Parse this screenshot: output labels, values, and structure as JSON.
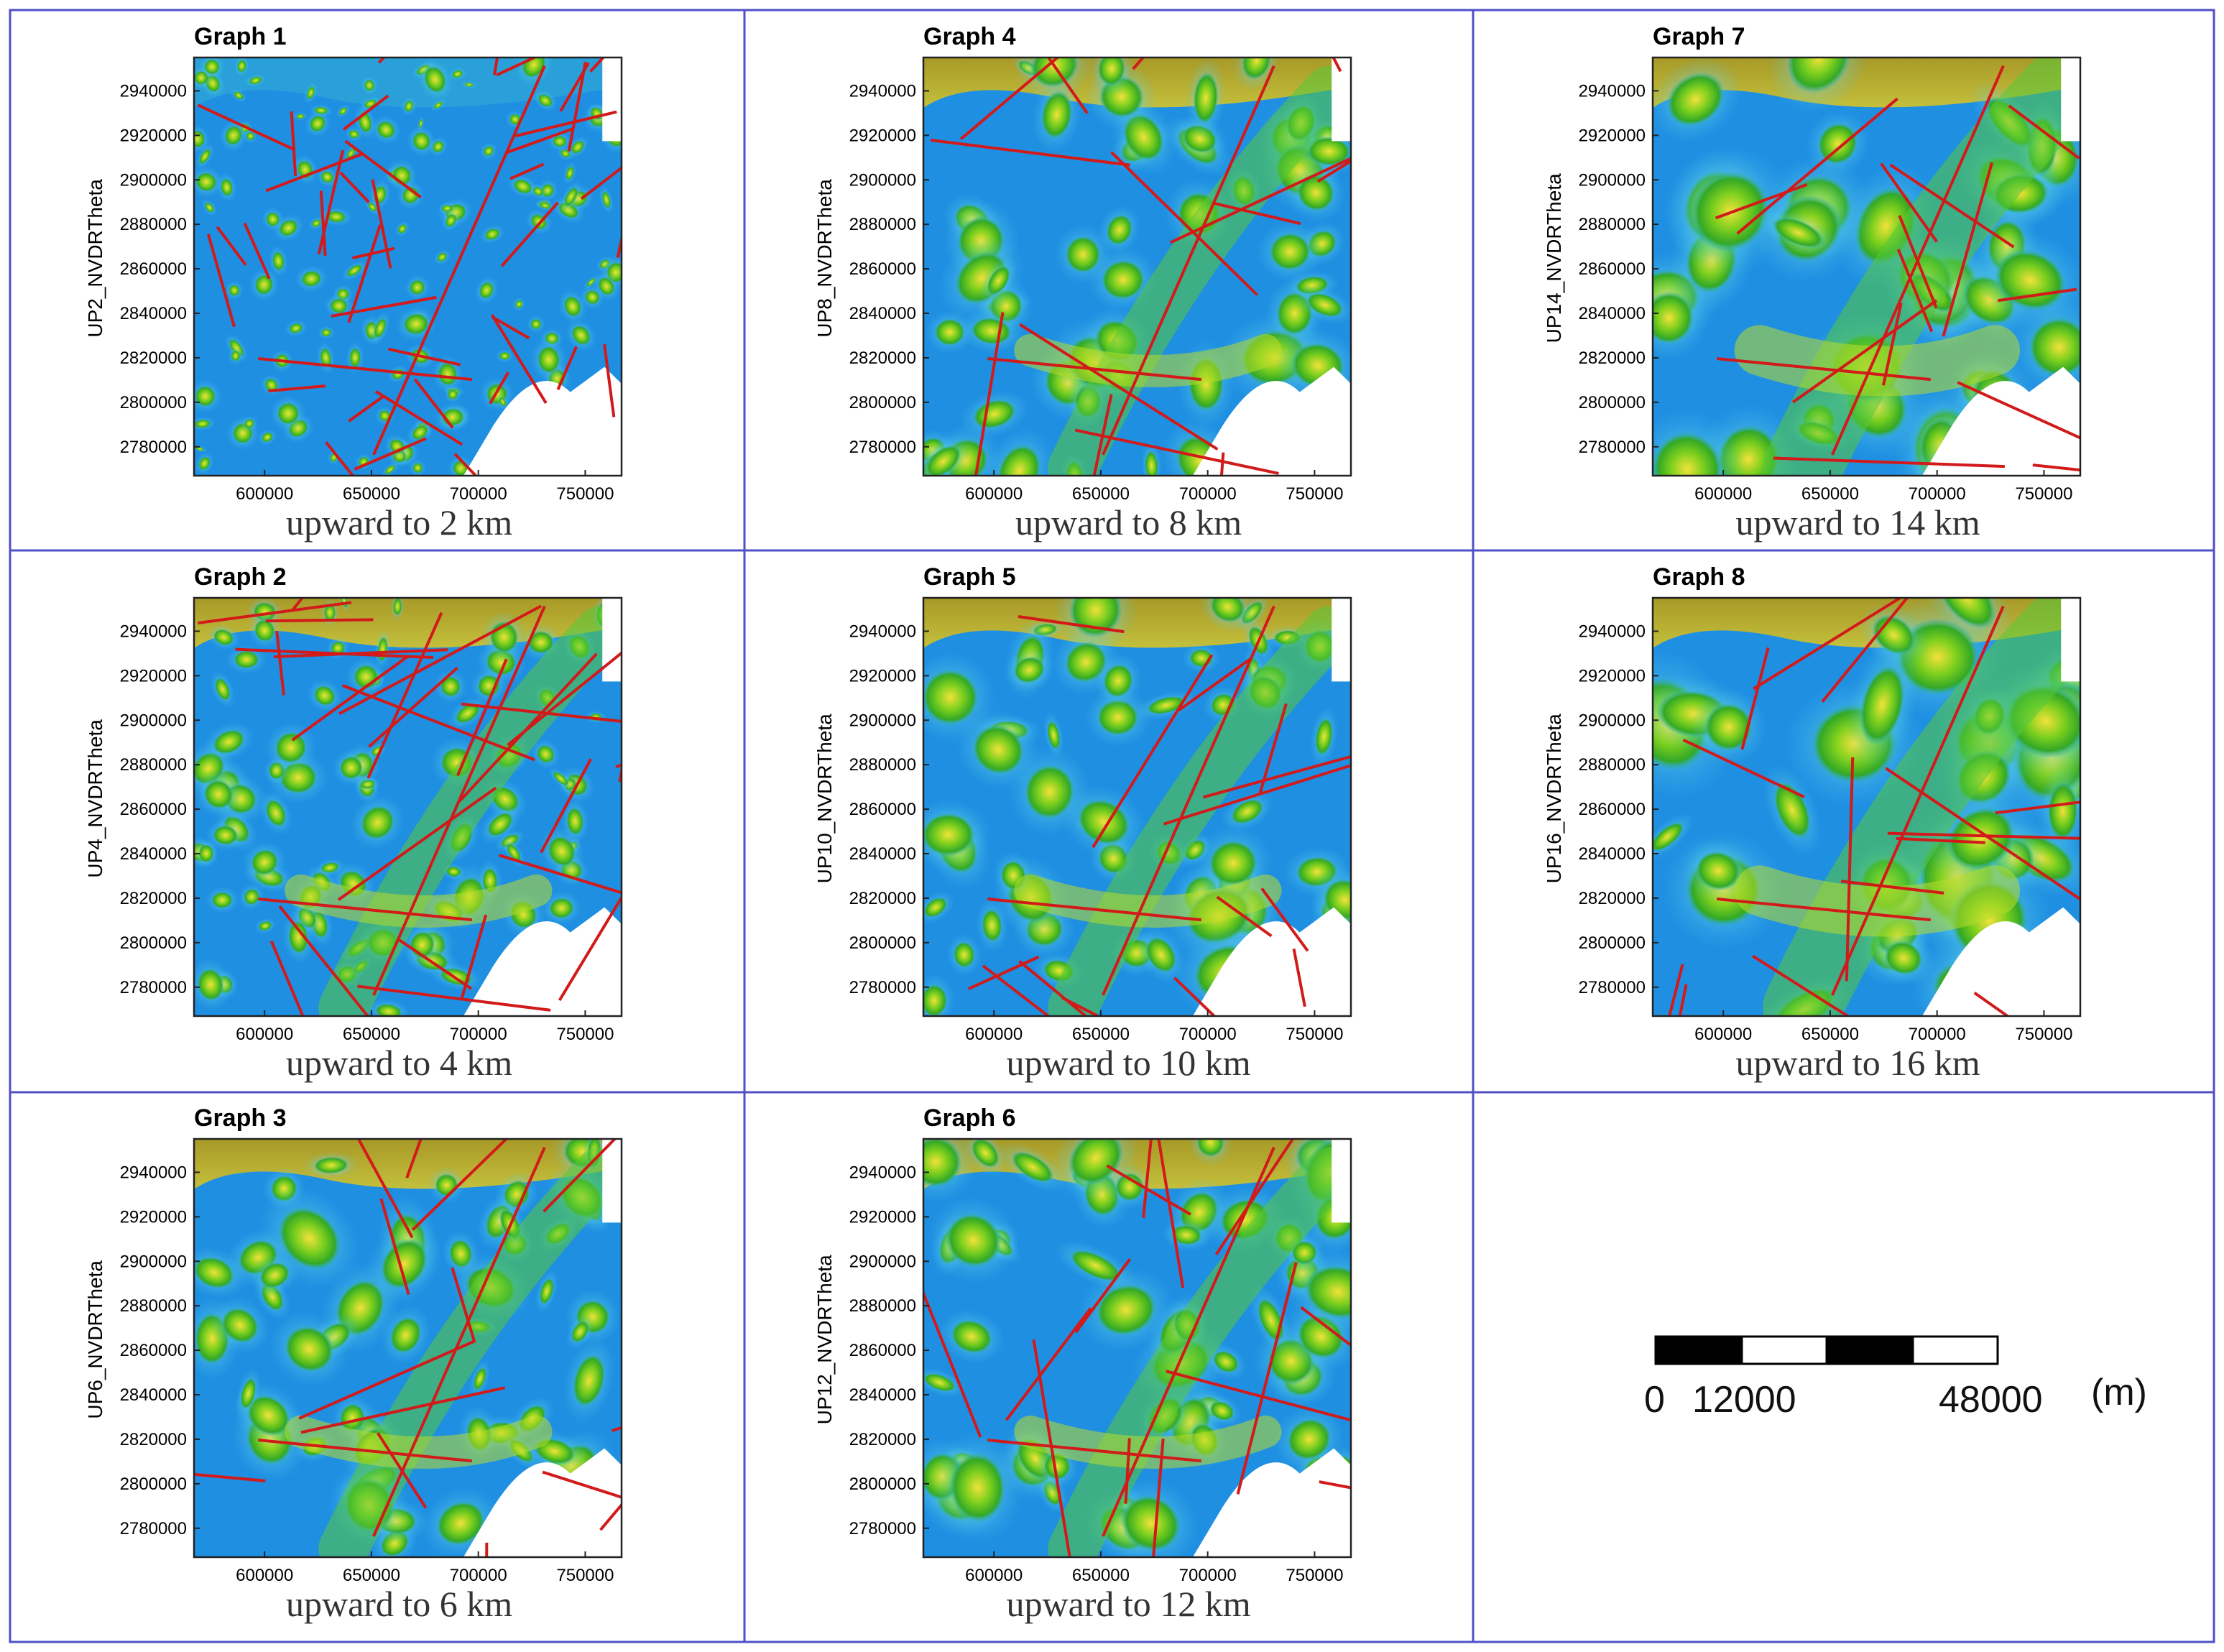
{
  "panels": [
    {
      "title": "Graph 1",
      "ylabel": "UP2_NVDRTheta",
      "caption": "upward to 2 km",
      "detail": "fine"
    },
    {
      "title": "Graph 4",
      "ylabel": "UP8_NVDRTheta",
      "caption": "upward to 8 km",
      "detail": "medium"
    },
    {
      "title": "Graph 7",
      "ylabel": "UP14_NVDRTheta",
      "caption": "upward to 14 km",
      "detail": "coarse"
    },
    {
      "title": "Graph 2",
      "ylabel": "UP4_NVDRTheta",
      "caption": "upward to 4 km",
      "detail": "fine2"
    },
    {
      "title": "Graph 5",
      "ylabel": "UP10_NVDRTheta",
      "caption": "upward to 10 km",
      "detail": "medium"
    },
    {
      "title": "Graph 8",
      "ylabel": "UP16_NVDRTheta",
      "caption": "upward to 16 km",
      "detail": "coarse"
    },
    {
      "title": "Graph 3",
      "ylabel": "UP6_NVDRTheta",
      "caption": "upward to 6 km",
      "detail": "medium"
    },
    {
      "title": "Graph 6",
      "ylabel": "UP12_NVDRTheta",
      "caption": "upward to 12 km",
      "detail": "medium"
    }
  ],
  "axes": {
    "x_ticks": [
      "600000",
      "650000",
      "700000",
      "750000"
    ],
    "y_ticks": [
      "2940000",
      "2920000",
      "2900000",
      "2880000",
      "2860000",
      "2840000",
      "2820000",
      "2800000",
      "2780000"
    ],
    "x_values": [
      600000,
      650000,
      700000,
      750000
    ],
    "y_values": [
      2940000,
      2920000,
      2900000,
      2880000,
      2860000,
      2840000,
      2820000,
      2800000,
      2780000
    ],
    "x_range": [
      567000,
      767000
    ],
    "y_range": [
      2767000,
      2955000
    ]
  },
  "scale_bar": {
    "label_zero": "0",
    "label_mid": "12000",
    "label_end": "48000",
    "unit": "(m)"
  },
  "colors": {
    "background_blue": "#1e8ee0",
    "anomaly_green": "#43c11a",
    "anomaly_yellow": "#e4d316",
    "lineament_red": "#d21a1a",
    "cell_border": "#4f4fc8"
  }
}
